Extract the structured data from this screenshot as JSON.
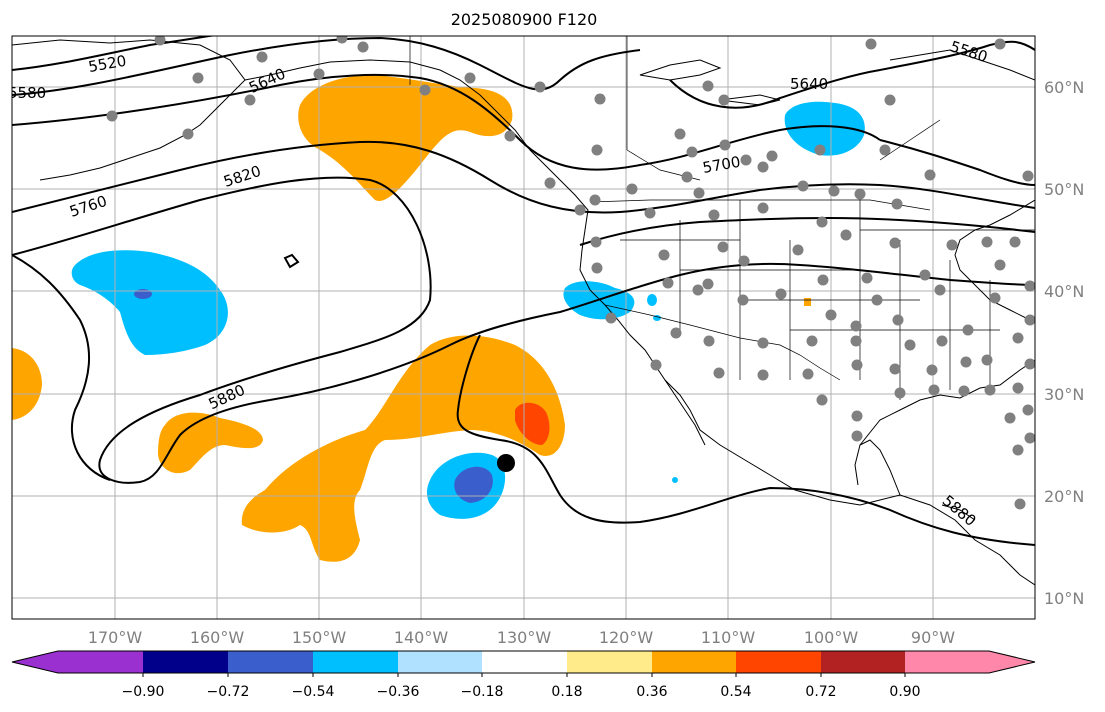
{
  "title": "2025080900 F120",
  "colors": {
    "grid": "#b0b0b0",
    "tick_text": "#808080",
    "coast": "#000000",
    "contour": "#000000",
    "station": "#808080",
    "positive_fill": "#ffa500",
    "positive_strong": "#ff4500",
    "negative_fill": "#00bfff",
    "negative_strong": "#3a5fcd"
  },
  "lon_ticks": [
    "170°W",
    "160°W",
    "150°W",
    "140°W",
    "130°W",
    "120°W",
    "110°W",
    "100°W",
    "90°W"
  ],
  "lat_ticks": [
    "60°N",
    "50°N",
    "40°N",
    "30°N",
    "20°N",
    "10°N"
  ],
  "contour_labels": [
    "5520",
    "5580",
    "5640",
    "5640",
    "5580",
    "5760",
    "5820",
    "5700",
    "5880",
    "5880"
  ],
  "colorbar": {
    "tick_labels": [
      "−0.90",
      "−0.72",
      "−0.54",
      "−0.36",
      "−0.18",
      "0.18",
      "0.36",
      "0.54",
      "0.72",
      "0.90"
    ],
    "colors": [
      "#9b30d0",
      "#00008b",
      "#3a5fcd",
      "#00bfff",
      "#b0e2ff",
      "#ffffff",
      "#ffeb8a",
      "#ffa500",
      "#ff4500",
      "#b22222",
      "#ff88aa"
    ]
  }
}
